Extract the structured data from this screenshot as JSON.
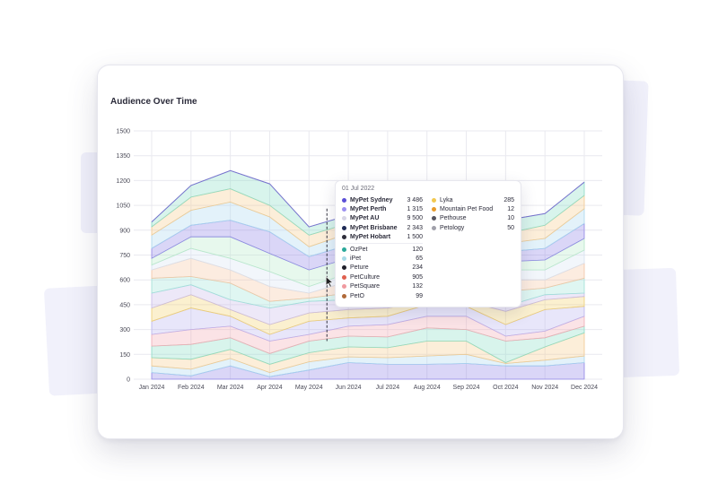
{
  "colors": {
    "series": [
      "#8b7fe6",
      "#a7d8ee",
      "#f6c98a",
      "#86dcc4",
      "#f4a9b1",
      "#b7b0ee",
      "#f2d06a",
      "#c6b9ea",
      "#9ce3d7",
      "#f7c3a0",
      "#d6e2f2",
      "#b5e8c7"
    ],
    "grid": "#e9e9ef",
    "axis_text": "#4a4a57"
  },
  "card": {
    "title": "Audience Over Time"
  },
  "chart_data": {
    "type": "area",
    "stacked": true,
    "title": "Audience Over Time",
    "categories": [
      "Jan 2024",
      "Feb 2024",
      "Mar 2024",
      "Apr 2024",
      "May 2024",
      "Jun 2024",
      "Jul 2024",
      "Aug 2024",
      "Sep 2024",
      "Oct 2024",
      "Nov 2024",
      "Dec 2024"
    ],
    "y_ticks": [
      0,
      150,
      300,
      450,
      600,
      750,
      900,
      1050,
      1200,
      1350,
      1500
    ],
    "ylim": [
      0,
      1500
    ],
    "grid": true,
    "boundaries": [
      [
        40,
        20,
        80,
        15,
        55,
        100,
        90,
        90,
        95,
        80,
        80,
        100
      ],
      [
        80,
        60,
        125,
        40,
        105,
        135,
        130,
        140,
        150,
        95,
        115,
        140
      ],
      [
        130,
        120,
        180,
        90,
        160,
        195,
        190,
        230,
        230,
        100,
        195,
        280
      ],
      [
        200,
        210,
        250,
        155,
        230,
        260,
        255,
        310,
        300,
        230,
        250,
        320
      ],
      [
        270,
        300,
        320,
        230,
        270,
        320,
        330,
        380,
        380,
        260,
        290,
        380
      ],
      [
        350,
        430,
        380,
        270,
        350,
        370,
        380,
        450,
        440,
        330,
        420,
        440
      ],
      [
        430,
        510,
        420,
        330,
        400,
        420,
        430,
        470,
        470,
        410,
        480,
        500
      ],
      [
        520,
        570,
        480,
        430,
        470,
        480,
        480,
        500,
        490,
        440,
        510,
        520
      ],
      [
        610,
        620,
        580,
        470,
        490,
        520,
        540,
        590,
        580,
        530,
        550,
        610
      ],
      [
        660,
        730,
        660,
        560,
        520,
        590,
        620,
        680,
        660,
        600,
        600,
        700
      ],
      [
        690,
        790,
        730,
        650,
        560,
        640,
        680,
        740,
        720,
        660,
        660,
        780
      ],
      [
        730,
        860,
        860,
        760,
        660,
        730,
        760,
        800,
        790,
        710,
        720,
        850
      ],
      [
        790,
        930,
        960,
        890,
        740,
        810,
        830,
        870,
        850,
        770,
        790,
        940
      ],
      [
        870,
        1020,
        1070,
        980,
        800,
        880,
        900,
        930,
        910,
        820,
        850,
        1030
      ],
      [
        920,
        1100,
        1150,
        1050,
        870,
        940,
        960,
        990,
        970,
        880,
        930,
        1110
      ],
      [
        950,
        1170,
        1260,
        1180,
        920,
        990,
        1000,
        1040,
        1020,
        960,
        1000,
        1190
      ]
    ],
    "hover_marker_x": "May 2024"
  },
  "tooltip": {
    "date": "01 Jul 2022",
    "left_top": [
      {
        "name": "MyPet Sydney",
        "value": "3 486",
        "color": "#5b4fd6",
        "bold": true
      },
      {
        "name": "MyPet Perth",
        "value": "1 315",
        "color": "#9b8ff0",
        "bold": true
      },
      {
        "name": "MyPet AU",
        "value": "9 500",
        "color": "#d8d6e6",
        "bold": true
      },
      {
        "name": "MyPet Brisbane",
        "value": "2 343",
        "color": "#1e2a55",
        "bold": true
      },
      {
        "name": "MyPet Hobart",
        "value": "1 500",
        "color": "#2d2d3a",
        "bold": true
      }
    ],
    "left_bottom": [
      {
        "name": "OzPet",
        "value": "120",
        "color": "#2aa89a",
        "bold": false
      },
      {
        "name": "iPet",
        "value": "65",
        "color": "#a9dbe8",
        "bold": false
      },
      {
        "name": "Peture",
        "value": "234",
        "color": "#1f1f2a",
        "bold": false
      },
      {
        "name": "PetCulture",
        "value": "905",
        "color": "#e0604f",
        "bold": false
      },
      {
        "name": "PetSquare",
        "value": "132",
        "color": "#f09aa0",
        "bold": false
      },
      {
        "name": "PetO",
        "value": "99",
        "color": "#b06a3a",
        "bold": false
      }
    ],
    "right": [
      {
        "name": "Lyka",
        "value": "285",
        "color": "#f2c84f",
        "bold": false
      },
      {
        "name": "Mountain Pet Food",
        "value": "12",
        "color": "#e89a2a",
        "bold": false
      },
      {
        "name": "Pethouse",
        "value": "10",
        "color": "#555560",
        "bold": false
      },
      {
        "name": "Petology",
        "value": "50",
        "color": "#a0a0aa",
        "bold": false
      }
    ]
  }
}
